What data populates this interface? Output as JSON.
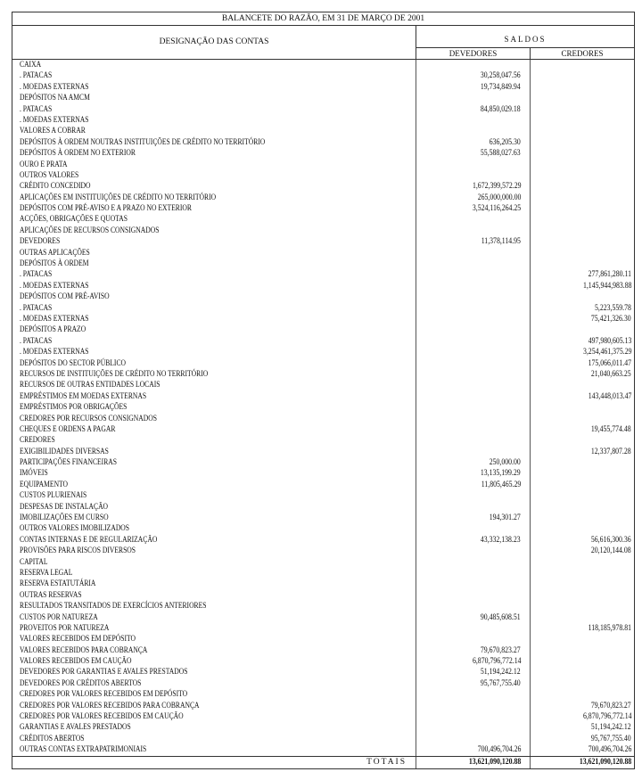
{
  "title": "BALANCETE DO RAZÃO, EM 31 DE MARÇO DE 2001",
  "header": {
    "designacao": "DESIGNAÇÃO DAS CONTAS",
    "saldos": "SALDOS",
    "devedores": "DEVEDORES",
    "credores": "CREDORES"
  },
  "rows": [
    {
      "name": "CAIXA",
      "dev": "",
      "cred": ""
    },
    {
      "name": ". PATACAS",
      "dev": "30,258,047.56",
      "cred": ""
    },
    {
      "name": ". MOEDAS EXTERNAS",
      "dev": "19,734,849.94",
      "cred": ""
    },
    {
      "name": "DEPÓSITOS NA AMCM",
      "dev": "",
      "cred": ""
    },
    {
      "name": ". PATACAS",
      "dev": "84,850,029.18",
      "cred": ""
    },
    {
      "name": ". MOEDAS EXTERNAS",
      "dev": "",
      "cred": ""
    },
    {
      "name": "VALORES A COBRAR",
      "dev": "",
      "cred": ""
    },
    {
      "name": "DEPÓSITOS À ORDEM NOUTRAS INSTITUIÇÕES DE CRÉDITO NO TERRITÓRIO",
      "dev": "636,205.30",
      "cred": ""
    },
    {
      "name": "DEPÓSITOS À ORDEM NO EXTERIOR",
      "dev": "55,588,027.63",
      "cred": ""
    },
    {
      "name": "OURO E PRATA",
      "dev": "",
      "cred": ""
    },
    {
      "name": "OUTROS VALORES",
      "dev": "",
      "cred": ""
    },
    {
      "name": "CRÉDITO CONCEDIDO",
      "dev": "1,672,399,572.29",
      "cred": ""
    },
    {
      "name": "APLICAÇÕES EM INSTITUIÇÕES DE CRÉDITO NO TERRITÓRIO",
      "dev": "265,000,000.00",
      "cred": ""
    },
    {
      "name": "DEPÓSITOS COM PRÉ-AVISO E A PRAZO NO EXTERIOR",
      "dev": "3,524,116,264.25",
      "cred": ""
    },
    {
      "name": "ACÇÕES, OBRIGAÇÕES E QUOTAS",
      "dev": "",
      "cred": ""
    },
    {
      "name": "APLICAÇÕES DE RECURSOS CONSIGNADOS",
      "dev": "",
      "cred": ""
    },
    {
      "name": "DEVEDORES",
      "dev": "11,378,114.95",
      "cred": ""
    },
    {
      "name": "OUTRAS APLICAÇÕES",
      "dev": "",
      "cred": ""
    },
    {
      "name": "DEPÓSITOS À ORDEM",
      "dev": "",
      "cred": ""
    },
    {
      "name": ". PATACAS",
      "dev": "",
      "cred": "277,861,280.11"
    },
    {
      "name": ". MOEDAS EXTERNAS",
      "dev": "",
      "cred": "1,145,944,983.88"
    },
    {
      "name": "DEPÓSITOS COM PRÉ-AVISO",
      "dev": "",
      "cred": ""
    },
    {
      "name": ". PATACAS",
      "dev": "",
      "cred": "5,223,559.78"
    },
    {
      "name": ". MOEDAS EXTERNAS",
      "dev": "",
      "cred": "75,421,326.30"
    },
    {
      "name": "DEPÓSITOS A PRAZO",
      "dev": "",
      "cred": ""
    },
    {
      "name": ". PATACAS",
      "dev": "",
      "cred": "497,980,605.13"
    },
    {
      "name": ". MOEDAS EXTERNAS",
      "dev": "",
      "cred": "3,254,461,375.29"
    },
    {
      "name": "DEPÓSITOS DO SECTOR PÚBLICO",
      "dev": "",
      "cred": "175,066,011.47"
    },
    {
      "name": "RECURSOS DE INSTITUIÇÕES DE CRÉDITO NO TERRITÓRIO",
      "dev": "",
      "cred": "21,040,663.25"
    },
    {
      "name": "RECURSOS DE OUTRAS ENTIDADES LOCAIS",
      "dev": "",
      "cred": ""
    },
    {
      "name": "EMPRÉSTIMOS EM MOEDAS EXTERNAS",
      "dev": "",
      "cred": "143,448,013.47"
    },
    {
      "name": "EMPRÉSTIMOS POR OBRIGAÇÕES",
      "dev": "",
      "cred": ""
    },
    {
      "name": "CREDORES POR RECURSOS CONSIGNADOS",
      "dev": "",
      "cred": ""
    },
    {
      "name": "CHEQUES E ORDENS A PAGAR",
      "dev": "",
      "cred": "19,455,774.48"
    },
    {
      "name": "CREDORES",
      "dev": "",
      "cred": ""
    },
    {
      "name": "EXIGIBILIDADES DIVERSAS",
      "dev": "",
      "cred": "12,337,807.28"
    },
    {
      "name": "PARTICIPAÇÕES FINANCEIRAS",
      "dev": "250,000.00",
      "cred": ""
    },
    {
      "name": "IMÓVEIS",
      "dev": "13,135,199.29",
      "cred": ""
    },
    {
      "name": "EQUIPAMENTO",
      "dev": "11,805,465.29",
      "cred": ""
    },
    {
      "name": "CUSTOS PLURIENAIS",
      "dev": "",
      "cred": ""
    },
    {
      "name": "DESPESAS DE INSTALAÇÃO",
      "dev": "",
      "cred": ""
    },
    {
      "name": "IMOBILIZAÇÕES EM CURSO",
      "dev": "194,301.27",
      "cred": ""
    },
    {
      "name": "OUTROS VALORES IMOBILIZADOS",
      "dev": "",
      "cred": ""
    },
    {
      "name": "CONTAS INTERNAS E DE REGULARIZAÇÃO",
      "dev": "43,332,138.23",
      "cred": "56,616,300.36"
    },
    {
      "name": "PROVISÕES PARA RISCOS DIVERSOS",
      "dev": "",
      "cred": "20,120,144.08"
    },
    {
      "name": "CAPITAL",
      "dev": "",
      "cred": ""
    },
    {
      "name": "RESERVA LEGAL",
      "dev": "",
      "cred": ""
    },
    {
      "name": "RESERVA ESTATUTÁRIA",
      "dev": "",
      "cred": ""
    },
    {
      "name": "OUTRAS RESERVAS",
      "dev": "",
      "cred": ""
    },
    {
      "name": "RESULTADOS TRANSITADOS DE EXERCÍCIOS ANTERIORES",
      "dev": "",
      "cred": ""
    },
    {
      "name": "CUSTOS POR NATUREZA",
      "dev": "90,485,608.51",
      "cred": ""
    },
    {
      "name": "PROVEITOS POR NATUREZA",
      "dev": "",
      "cred": "118,185,978.81"
    },
    {
      "name": "VALORES RECEBIDOS EM DEPÓSITO",
      "dev": "",
      "cred": ""
    },
    {
      "name": "VALORES RECEBIDOS PARA COBRANÇA",
      "dev": "79,670,823.27",
      "cred": ""
    },
    {
      "name": "VALORES RECEBIDOS EM CAUÇÃO",
      "dev": "6,870,796,772.14",
      "cred": ""
    },
    {
      "name": "DEVEDORES POR GARANTIAS E AVALES PRESTADOS",
      "dev": "51,194,242.12",
      "cred": ""
    },
    {
      "name": "DEVEDORES POR CRÉDITOS ABERTOS",
      "dev": "95,767,755.40",
      "cred": ""
    },
    {
      "name": "CREDORES POR VALORES RECEBIDOS EM DEPÓSITO",
      "dev": "",
      "cred": ""
    },
    {
      "name": "CREDORES POR VALORES RECEBIDOS PARA COBRANÇA",
      "dev": "",
      "cred": "79,670,823.27"
    },
    {
      "name": "CREDORES POR VALORES RECEBIDOS EM CAUÇÃO",
      "dev": "",
      "cred": "6,870,796,772.14"
    },
    {
      "name": "GARANTIAS E AVALES PRESTADOS",
      "dev": "",
      "cred": "51,194,242.12"
    },
    {
      "name": "CRÉDITOS ABERTOS",
      "dev": "",
      "cred": "95,767,755.40"
    },
    {
      "name": "OUTRAS CONTAS EXTRAPATRIMONIAIS",
      "dev": "700,496,704.26",
      "cred": "700,496,704.26"
    }
  ],
  "totals": {
    "label": "TOTAIS",
    "dev": "13,621,090,120.88",
    "cred": "13,621,090,120.88"
  }
}
